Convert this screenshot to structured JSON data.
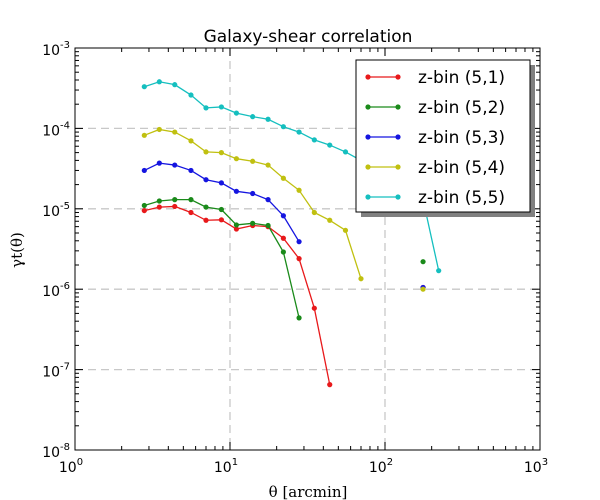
{
  "chart_data": {
    "type": "line",
    "title": "Galaxy-shear correlation",
    "xlabel": "θ [arcmin]",
    "ylabel": "γt(θ)",
    "xscale": "log",
    "yscale": "log",
    "xlim": [
      1,
      1000
    ],
    "ylim": [
      1e-08,
      0.001
    ],
    "x_ticks": [
      {
        "value": 1,
        "base": "10",
        "exp": "0"
      },
      {
        "value": 10,
        "base": "10",
        "exp": "1"
      },
      {
        "value": 100,
        "base": "10",
        "exp": "2"
      },
      {
        "value": 1000,
        "base": "10",
        "exp": "3"
      }
    ],
    "y_ticks": [
      {
        "value": 1e-08,
        "base": "10",
        "exp": "-8"
      },
      {
        "value": 1e-07,
        "base": "10",
        "exp": "-7"
      },
      {
        "value": 1e-06,
        "base": "10",
        "exp": "-6"
      },
      {
        "value": 1e-05,
        "base": "10",
        "exp": "-5"
      },
      {
        "value": 0.0001,
        "base": "10",
        "exp": "-4"
      },
      {
        "value": 0.001,
        "base": "10",
        "exp": "-3"
      }
    ],
    "grid": true,
    "legend_position": "top-right",
    "series": [
      {
        "name": "z-bin (5,1)",
        "color": "#e8191b",
        "points": [
          [
            2.8,
            9.5e-06
          ],
          [
            3.5,
            1.05e-05
          ],
          [
            4.4,
            1.07e-05
          ],
          [
            5.6,
            9e-06
          ],
          [
            7.0,
            7.2e-06
          ],
          [
            8.8,
            7.3e-06
          ],
          [
            11.0,
            5.6e-06
          ],
          [
            14.0,
            6.2e-06
          ],
          [
            17.6,
            6e-06
          ],
          [
            22.1,
            4.3e-06
          ],
          [
            27.9,
            2.4e-06
          ],
          [
            35.0,
            5.8e-07
          ],
          [
            44.0,
            6.5e-08
          ]
        ],
        "extra_points": [
          [
            176,
            1.05e-06
          ]
        ]
      },
      {
        "name": "z-bin (5,2)",
        "color": "#1a8a1a",
        "points": [
          [
            2.8,
            1.1e-05
          ],
          [
            3.5,
            1.25e-05
          ],
          [
            4.4,
            1.3e-05
          ],
          [
            5.6,
            1.3e-05
          ],
          [
            7.0,
            1.05e-05
          ],
          [
            8.8,
            9.8e-06
          ],
          [
            11.0,
            6.3e-06
          ],
          [
            14.0,
            6.6e-06
          ],
          [
            17.6,
            6.2e-06
          ],
          [
            22.1,
            2.9e-06
          ],
          [
            27.9,
            4.4e-07
          ]
        ],
        "extra_points": [
          [
            176,
            2.2e-06
          ]
        ]
      },
      {
        "name": "z-bin (5,3)",
        "color": "#1515e0",
        "points": [
          [
            2.8,
            3e-05
          ],
          [
            3.5,
            3.7e-05
          ],
          [
            4.4,
            3.5e-05
          ],
          [
            5.6,
            3e-05
          ],
          [
            7.0,
            2.3e-05
          ],
          [
            8.8,
            2.1e-05
          ],
          [
            11.0,
            1.65e-05
          ],
          [
            14.0,
            1.55e-05
          ],
          [
            17.6,
            1.3e-05
          ],
          [
            22.1,
            8.2e-06
          ],
          [
            27.9,
            3.9e-06
          ]
        ],
        "extra_points": [
          [
            176,
            1.05e-06
          ]
        ]
      },
      {
        "name": "z-bin (5,4)",
        "color": "#c0c010",
        "points": [
          [
            2.8,
            8.2e-05
          ],
          [
            3.5,
            9.7e-05
          ],
          [
            4.4,
            9e-05
          ],
          [
            5.6,
            7e-05
          ],
          [
            7.0,
            5.1e-05
          ],
          [
            8.8,
            5e-05
          ],
          [
            11.0,
            4.2e-05
          ],
          [
            14.0,
            3.9e-05
          ],
          [
            17.6,
            3.5e-05
          ],
          [
            22.1,
            2.4e-05
          ],
          [
            27.9,
            1.7e-05
          ],
          [
            35.0,
            9e-06
          ],
          [
            44.0,
            7.2e-06
          ],
          [
            55.6,
            5.4e-06
          ],
          [
            70.0,
            1.35e-06
          ]
        ],
        "extra_points": [
          [
            176,
            1e-06
          ]
        ]
      },
      {
        "name": "z-bin (5,5)",
        "color": "#15bfbf",
        "points": [
          [
            2.8,
            0.00033
          ],
          [
            3.5,
            0.00038
          ],
          [
            4.4,
            0.00035
          ],
          [
            5.6,
            0.00026
          ],
          [
            7.0,
            0.00018
          ],
          [
            8.8,
            0.000185
          ],
          [
            11.0,
            0.000155
          ],
          [
            14.0,
            0.00014
          ],
          [
            17.6,
            0.00013
          ],
          [
            22.1,
            0.000105
          ],
          [
            27.9,
            9e-05
          ],
          [
            35.0,
            7.2e-05
          ],
          [
            44.0,
            6.2e-05
          ],
          [
            55.6,
            5.1e-05
          ],
          [
            70.0,
            4e-05
          ],
          [
            88.0,
            3e-05
          ],
          [
            111,
            1.85e-05
          ],
          [
            140,
            1e-05
          ],
          [
            176,
            1.3e-05
          ],
          [
            222,
            1.7e-06
          ]
        ],
        "extra_points": []
      }
    ]
  }
}
